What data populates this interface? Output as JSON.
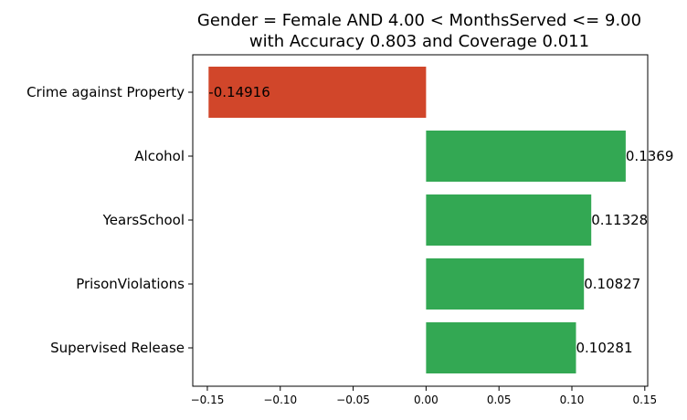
{
  "chart_data": {
    "type": "bar",
    "orientation": "horizontal",
    "title": [
      "Gender = Female AND 4.00 < MonthsServed <= 9.00",
      "with Accuracy 0.803 and Coverage 0.011"
    ],
    "xlabel": "",
    "ylabel": "",
    "categories": [
      "Crime against Property",
      "Alcohol",
      "YearsSchool",
      "PrisonViolations",
      "Supervised Release"
    ],
    "values": [
      -0.14916,
      0.1369,
      0.11328,
      0.10827,
      0.10281
    ],
    "value_labels": [
      "-0.14916",
      "0.1369",
      "0.11328",
      "0.10827",
      "0.10281"
    ],
    "xlim": [
      -0.16,
      0.152
    ],
    "xticks": [
      -0.15,
      -0.1,
      -0.05,
      0.0,
      0.05,
      0.1,
      0.15
    ],
    "xtick_labels": [
      "−0.15",
      "−0.10",
      "−0.05",
      "0.00",
      "0.05",
      "0.10",
      "0.15"
    ],
    "grid": false,
    "legend": "none",
    "colors": {
      "negative": "#d1462a",
      "positive": "#33a853"
    }
  }
}
